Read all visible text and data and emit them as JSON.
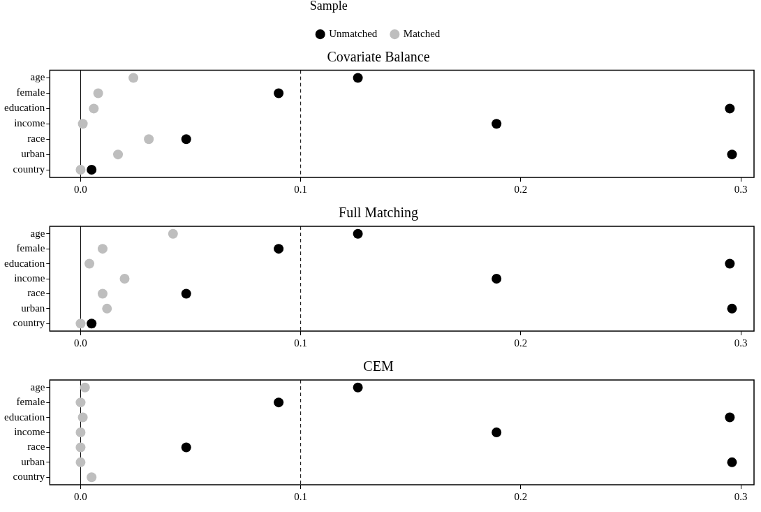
{
  "chart_data": [
    {
      "type": "scatter",
      "title": "Covariate Balance",
      "legend_title": "Sample",
      "legend": "top",
      "orientation": "horizontal",
      "marker": "circle",
      "grid": false,
      "categories": [
        "age",
        "female",
        "education",
        "income",
        "race",
        "urban",
        "country"
      ],
      "xlim": [
        -0.014,
        0.306
      ],
      "xticks": [
        {
          "value": 0,
          "label": "0.0"
        },
        {
          "value": 0.1,
          "label": "0.1"
        },
        {
          "value": 0.2,
          "label": "0.2"
        },
        {
          "value": 0.3,
          "label": "0.3"
        }
      ],
      "ref_lines": [
        {
          "axis": "x",
          "value": 0,
          "line_style": "solid",
          "color": "#000000"
        },
        {
          "axis": "x",
          "value": 0.1,
          "line_style": "dashed",
          "color": "#000000"
        }
      ],
      "series": [
        {
          "name": "Unmatched",
          "color": "#000000",
          "values": [
            0.126,
            0.09,
            0.295,
            0.189,
            0.048,
            0.296,
            0.005
          ]
        },
        {
          "name": "Matched",
          "color": "#bebebe",
          "values": [
            0.024,
            0.008,
            0.006,
            0.001,
            0.031,
            0.017,
            0.0
          ]
        }
      ]
    },
    {
      "type": "scatter",
      "title": "Full Matching",
      "legend": false,
      "orientation": "horizontal",
      "marker": "circle",
      "grid": false,
      "categories": [
        "age",
        "female",
        "education",
        "income",
        "race",
        "urban",
        "country"
      ],
      "xlim": [
        -0.014,
        0.306
      ],
      "xticks": [
        {
          "value": 0,
          "label": "0.0"
        },
        {
          "value": 0.1,
          "label": "0.1"
        },
        {
          "value": 0.2,
          "label": "0.2"
        },
        {
          "value": 0.3,
          "label": "0.3"
        }
      ],
      "ref_lines": [
        {
          "axis": "x",
          "value": 0,
          "line_style": "solid",
          "color": "#000000"
        },
        {
          "axis": "x",
          "value": 0.1,
          "line_style": "dashed",
          "color": "#000000"
        }
      ],
      "series": [
        {
          "color": "#000000",
          "values": [
            0.126,
            0.09,
            0.295,
            0.189,
            0.048,
            0.296,
            0.005
          ]
        },
        {
          "color": "#bebebe",
          "values": [
            0.042,
            0.01,
            0.004,
            0.02,
            0.01,
            0.012,
            0.0
          ]
        }
      ]
    },
    {
      "type": "scatter",
      "title": "CEM",
      "legend": false,
      "orientation": "horizontal",
      "marker": "circle",
      "grid": false,
      "categories": [
        "age",
        "female",
        "education",
        "income",
        "race",
        "urban",
        "country"
      ],
      "xlim": [
        -0.014,
        0.306
      ],
      "xticks": [
        {
          "value": 0,
          "label": "0.0"
        },
        {
          "value": 0.1,
          "label": "0.1"
        },
        {
          "value": 0.2,
          "label": "0.2"
        },
        {
          "value": 0.3,
          "label": "0.3"
        }
      ],
      "ref_lines": [
        {
          "axis": "x",
          "value": 0,
          "line_style": "solid",
          "color": "#000000"
        },
        {
          "axis": "x",
          "value": 0.1,
          "line_style": "dashed",
          "color": "#000000"
        }
      ],
      "series": [
        {
          "color": "#000000",
          "values": [
            0.126,
            0.09,
            0.295,
            0.189,
            0.048,
            0.296,
            null
          ]
        },
        {
          "color": "#bebebe",
          "values": [
            0.002,
            0.0,
            0.001,
            0.0,
            0.0,
            0.0,
            0.005
          ]
        }
      ]
    }
  ]
}
